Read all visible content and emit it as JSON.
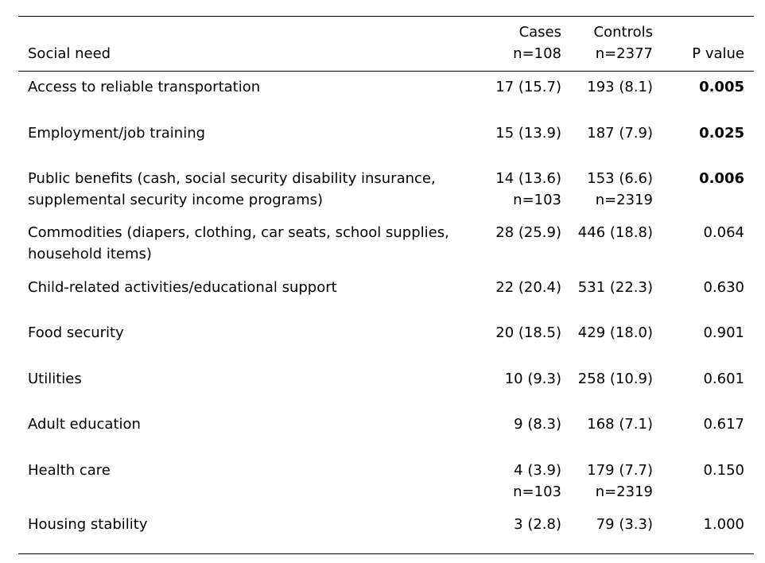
{
  "header": {
    "need": "Social need",
    "cases_top": "Cases",
    "cases_bottom": "n=108",
    "controls_top": "Controls",
    "controls_bottom": "n=2377",
    "pvalue": "P value"
  },
  "rows": [
    {
      "need": [
        "Access to reliable transportation"
      ],
      "cases": [
        "17 (15.7)"
      ],
      "controls": [
        "193 (8.1)"
      ],
      "pvalue": "0.005",
      "significant": true
    },
    {
      "need": [
        "Employment/job training"
      ],
      "cases": [
        "15 (13.9)"
      ],
      "controls": [
        "187 (7.9)"
      ],
      "pvalue": "0.025",
      "significant": true
    },
    {
      "need": [
        "Public benefits (cash, social security disability insurance,",
        "supplemental security income programs)"
      ],
      "cases": [
        "14 (13.6)",
        "n=103"
      ],
      "controls": [
        "153 (6.6)",
        "n=2319"
      ],
      "pvalue": "0.006",
      "significant": true
    },
    {
      "need": [
        "Commodities (diapers, clothing, car seats, school supplies,",
        "household items)"
      ],
      "cases": [
        "28 (25.9)"
      ],
      "controls": [
        "446 (18.8)"
      ],
      "pvalue": "0.064",
      "significant": false
    },
    {
      "need": [
        "Child-related activities/educational support"
      ],
      "cases": [
        "22 (20.4)"
      ],
      "controls": [
        "531 (22.3)"
      ],
      "pvalue": "0.630",
      "significant": false
    },
    {
      "need": [
        "Food security"
      ],
      "cases": [
        "20 (18.5)"
      ],
      "controls": [
        "429 (18.0)"
      ],
      "pvalue": "0.901",
      "significant": false
    },
    {
      "need": [
        "Utilities"
      ],
      "cases": [
        "10 (9.3)"
      ],
      "controls": [
        "258 (10.9)"
      ],
      "pvalue": "0.601",
      "significant": false
    },
    {
      "need": [
        "Adult education"
      ],
      "cases": [
        "9 (8.3)"
      ],
      "controls": [
        "168 (7.1)"
      ],
      "pvalue": "0.617",
      "significant": false
    },
    {
      "need": [
        "Health care"
      ],
      "cases": [
        "4 (3.9)",
        "n=103"
      ],
      "controls": [
        "179 (7.7)",
        "n=2319"
      ],
      "pvalue": "0.150",
      "significant": false
    },
    {
      "need": [
        "Housing stability"
      ],
      "cases": [
        "3 (2.8)"
      ],
      "controls": [
        "79 (3.3)"
      ],
      "pvalue": "1.000",
      "significant": false
    }
  ]
}
